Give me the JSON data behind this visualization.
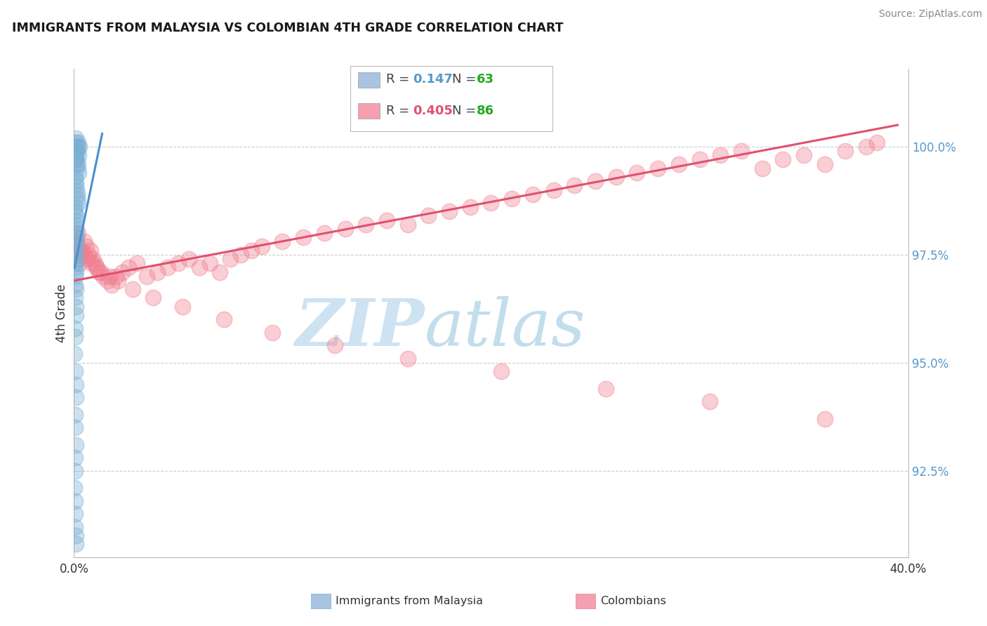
{
  "title": "IMMIGRANTS FROM MALAYSIA VS COLOMBIAN 4TH GRADE CORRELATION CHART",
  "source_text": "Source: ZipAtlas.com",
  "ylabel": "4th Grade",
  "x_min": 0.0,
  "x_max": 40.0,
  "y_min": 90.5,
  "y_max": 101.8,
  "y_ticks": [
    92.5,
    95.0,
    97.5,
    100.0
  ],
  "right_y_labels": [
    "92.5%",
    "95.0%",
    "97.5%",
    "100.0%"
  ],
  "legend_entries": [
    {
      "label": "Immigrants from Malaysia",
      "color": "#a8c4e0",
      "R": "0.147",
      "N": "63",
      "r_color": "#5599cc",
      "n_color": "#22aa22"
    },
    {
      "label": "Colombians",
      "color": "#f5a0b0",
      "R": "0.405",
      "N": "86",
      "r_color": "#e05070",
      "n_color": "#22aa22"
    }
  ],
  "malaysia_color": "#7aafd4",
  "colombian_color": "#f08090",
  "malaysia_scatter_x": [
    0.05,
    0.08,
    0.1,
    0.12,
    0.15,
    0.18,
    0.2,
    0.22,
    0.25,
    0.05,
    0.07,
    0.09,
    0.11,
    0.13,
    0.16,
    0.19,
    0.21,
    0.06,
    0.08,
    0.1,
    0.12,
    0.14,
    0.17,
    0.2,
    0.04,
    0.06,
    0.08,
    0.1,
    0.05,
    0.07,
    0.09,
    0.11,
    0.13,
    0.04,
    0.06,
    0.08,
    0.1,
    0.05,
    0.07,
    0.09,
    0.04,
    0.06,
    0.08,
    0.05,
    0.07,
    0.09,
    0.04,
    0.06,
    0.03,
    0.05,
    0.07,
    0.09,
    0.04,
    0.06,
    0.08,
    0.04,
    0.06,
    0.03,
    0.05,
    0.04,
    0.06,
    0.08,
    0.1
  ],
  "malaysia_scatter_y": [
    100.0,
    100.1,
    100.2,
    100.0,
    99.9,
    100.1,
    100.0,
    99.8,
    100.0,
    99.7,
    99.8,
    99.9,
    99.6,
    99.7,
    99.5,
    99.6,
    99.4,
    99.3,
    99.2,
    99.1,
    99.0,
    98.9,
    98.8,
    98.7,
    98.5,
    98.6,
    98.4,
    98.3,
    98.2,
    98.1,
    98.0,
    97.9,
    97.8,
    97.7,
    97.6,
    97.5,
    97.4,
    97.3,
    97.2,
    97.1,
    97.0,
    96.8,
    96.7,
    96.5,
    96.3,
    96.1,
    95.8,
    95.6,
    95.2,
    94.8,
    94.5,
    94.2,
    93.8,
    93.5,
    93.1,
    92.8,
    92.5,
    92.1,
    91.8,
    91.5,
    91.2,
    91.0,
    90.8
  ],
  "colombian_scatter_x": [
    0.05,
    0.1,
    0.15,
    0.2,
    0.25,
    0.3,
    0.35,
    0.4,
    0.5,
    0.6,
    0.7,
    0.8,
    0.9,
    1.0,
    1.1,
    1.2,
    1.4,
    1.6,
    1.8,
    2.0,
    2.3,
    2.6,
    3.0,
    3.5,
    4.0,
    4.5,
    5.0,
    5.5,
    6.0,
    6.5,
    7.0,
    7.5,
    8.0,
    8.5,
    9.0,
    10.0,
    11.0,
    12.0,
    13.0,
    14.0,
    15.0,
    16.0,
    17.0,
    18.0,
    19.0,
    20.0,
    21.0,
    22.0,
    23.0,
    24.0,
    25.0,
    26.0,
    27.0,
    28.0,
    29.0,
    30.0,
    31.0,
    32.0,
    33.0,
    34.0,
    35.0,
    36.0,
    37.0,
    38.0,
    38.5,
    0.08,
    0.18,
    0.28,
    0.45,
    0.65,
    0.85,
    1.05,
    1.3,
    1.7,
    2.1,
    2.8,
    3.8,
    5.2,
    7.2,
    9.5,
    12.5,
    16.0,
    20.5,
    25.5,
    30.5,
    36.0
  ],
  "colombian_scatter_y": [
    97.8,
    97.5,
    97.6,
    97.7,
    97.4,
    97.3,
    97.5,
    97.6,
    97.8,
    97.7,
    97.5,
    97.6,
    97.4,
    97.3,
    97.2,
    97.1,
    97.0,
    96.9,
    96.8,
    97.0,
    97.1,
    97.2,
    97.3,
    97.0,
    97.1,
    97.2,
    97.3,
    97.4,
    97.2,
    97.3,
    97.1,
    97.4,
    97.5,
    97.6,
    97.7,
    97.8,
    97.9,
    98.0,
    98.1,
    98.2,
    98.3,
    98.2,
    98.4,
    98.5,
    98.6,
    98.7,
    98.8,
    98.9,
    99.0,
    99.1,
    99.2,
    99.3,
    99.4,
    99.5,
    99.6,
    99.7,
    99.8,
    99.9,
    99.5,
    99.7,
    99.8,
    99.6,
    99.9,
    100.0,
    100.1,
    97.9,
    98.0,
    97.6,
    97.5,
    97.4,
    97.3,
    97.2,
    97.1,
    97.0,
    96.9,
    96.7,
    96.5,
    96.3,
    96.0,
    95.7,
    95.4,
    95.1,
    94.8,
    94.4,
    94.1,
    93.7
  ],
  "malaysia_trend_x": [
    0.02,
    1.35
  ],
  "malaysia_trend_y": [
    97.2,
    100.3
  ],
  "colombian_trend_x": [
    0.02,
    39.5
  ],
  "colombian_trend_y": [
    96.9,
    100.5
  ],
  "grid_color": "#cccccc",
  "background_color": "#ffffff",
  "watermark_zip": "ZIP",
  "watermark_atlas": "atlas",
  "watermark_color_zip": "#c5dff0",
  "watermark_color_atlas": "#b8d8e8"
}
